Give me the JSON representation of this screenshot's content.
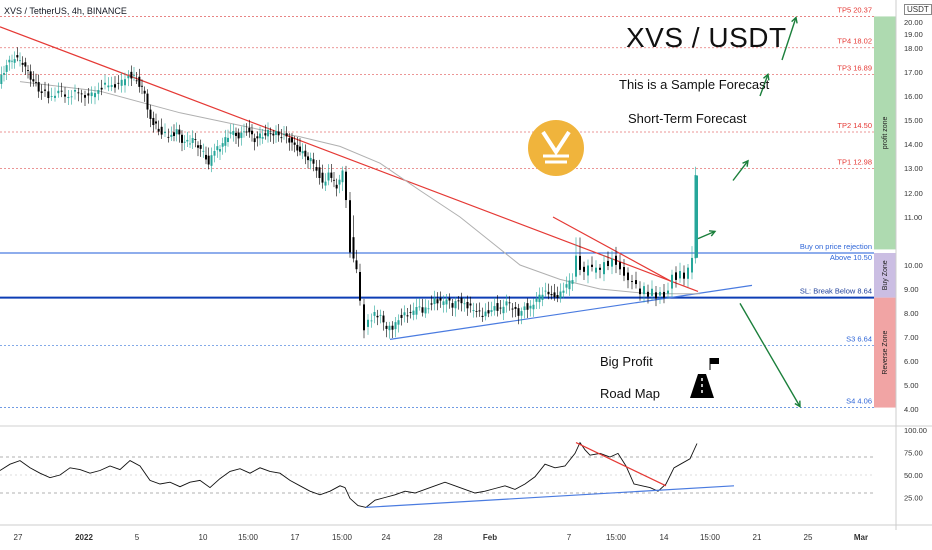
{
  "header": {
    "symbol_line": "XVS / TetherUS, 4h, BINANCE",
    "currency": "USDT"
  },
  "annotations": {
    "title": "XVS / USDT",
    "sample": "This is a Sample Forecast",
    "short_term": "Short-Term Forecast",
    "big_profit": "Big Profit",
    "road_map": "Road Map"
  },
  "colors": {
    "up_candle": "#26a69a",
    "down_candle": "#000000",
    "trend_red": "#e53935",
    "trend_blue": "#2962ff",
    "profit_zone": "#a5d6a7",
    "buy_zone": "#c5b7e0",
    "reverse_zone": "#ef9a9a",
    "forecast_arrow": "#1b7f3b",
    "logo": "#f0b43c"
  },
  "chart_data": [
    {
      "type": "candlestick",
      "y_axis_ticks": [
        "20.00",
        "19.00",
        "18.00",
        "17.00",
        "16.00",
        "15.00",
        "14.00",
        "13.00",
        "12.00",
        "11.00",
        "10.00",
        "9.00",
        "8.00",
        "7.00",
        "6.00",
        "5.00",
        "4.00"
      ],
      "x_axis_ticks": [
        "27",
        "2022",
        "5",
        "10",
        "15:00",
        "17",
        "15:00",
        "24",
        "28",
        "Feb",
        "7",
        "15:00",
        "14",
        "15:00",
        "21",
        "25",
        "Mar"
      ],
      "ylim": [
        3.8,
        20.4
      ],
      "close_path": [
        [
          0,
          16.5
        ],
        [
          8,
          17.3
        ],
        [
          16,
          17.6
        ],
        [
          24,
          17.4
        ],
        [
          32,
          16.8
        ],
        [
          40,
          16.3
        ],
        [
          50,
          16.0
        ],
        [
          60,
          16.1
        ],
        [
          70,
          16.0
        ],
        [
          80,
          16.2
        ],
        [
          90,
          15.9
        ],
        [
          100,
          16.3
        ],
        [
          110,
          16.5
        ],
        [
          120,
          16.4
        ],
        [
          130,
          16.9
        ],
        [
          138,
          16.7
        ],
        [
          146,
          16.1
        ],
        [
          152,
          15.0
        ],
        [
          160,
          14.6
        ],
        [
          170,
          14.3
        ],
        [
          178,
          14.5
        ],
        [
          186,
          14.0
        ],
        [
          194,
          14.2
        ],
        [
          202,
          13.8
        ],
        [
          210,
          13.2
        ],
        [
          216,
          13.7
        ],
        [
          224,
          14.0
        ],
        [
          232,
          14.5
        ],
        [
          240,
          14.3
        ],
        [
          248,
          14.6
        ],
        [
          256,
          14.2
        ],
        [
          264,
          14.4
        ],
        [
          272,
          14.5
        ],
        [
          280,
          14.4
        ],
        [
          288,
          14.3
        ],
        [
          296,
          13.9
        ],
        [
          304,
          13.6
        ],
        [
          312,
          13.3
        ],
        [
          318,
          13.0
        ],
        [
          324,
          12.4
        ],
        [
          330,
          12.7
        ],
        [
          338,
          12.3
        ],
        [
          344,
          12.8
        ],
        [
          348,
          11.6
        ],
        [
          352,
          10.6
        ],
        [
          358,
          9.8
        ],
        [
          362,
          8.4
        ],
        [
          366,
          7.4
        ],
        [
          370,
          7.6
        ],
        [
          376,
          8.0
        ],
        [
          382,
          7.8
        ],
        [
          388,
          7.3
        ],
        [
          394,
          7.4
        ],
        [
          400,
          7.8
        ],
        [
          406,
          8.0
        ],
        [
          412,
          7.9
        ],
        [
          418,
          8.2
        ],
        [
          424,
          8.1
        ],
        [
          430,
          8.3
        ],
        [
          436,
          8.6
        ],
        [
          442,
          8.4
        ],
        [
          448,
          8.5
        ],
        [
          454,
          8.3
        ],
        [
          460,
          8.6
        ],
        [
          466,
          8.4
        ],
        [
          472,
          8.2
        ],
        [
          478,
          8.0
        ],
        [
          484,
          7.9
        ],
        [
          490,
          8.1
        ],
        [
          496,
          8.3
        ],
        [
          502,
          8.1
        ],
        [
          508,
          8.4
        ],
        [
          514,
          8.2
        ],
        [
          520,
          8.0
        ],
        [
          526,
          8.3
        ],
        [
          532,
          8.2
        ],
        [
          538,
          8.5
        ],
        [
          544,
          8.8
        ],
        [
          550,
          8.9
        ],
        [
          556,
          8.7
        ],
        [
          562,
          8.8
        ],
        [
          568,
          9.1
        ],
        [
          574,
          9.4
        ],
        [
          578,
          10.3
        ],
        [
          582,
          9.9
        ],
        [
          586,
          9.6
        ],
        [
          590,
          10.1
        ],
        [
          594,
          9.8
        ],
        [
          598,
          10.0
        ],
        [
          602,
          9.7
        ],
        [
          606,
          10.2
        ],
        [
          610,
          9.9
        ],
        [
          614,
          10.3
        ],
        [
          618,
          10.0
        ],
        [
          622,
          9.8
        ],
        [
          626,
          9.6
        ],
        [
          630,
          9.3
        ],
        [
          634,
          9.4
        ],
        [
          638,
          9.1
        ],
        [
          642,
          8.9
        ],
        [
          646,
          9.0
        ],
        [
          650,
          8.8
        ],
        [
          654,
          8.9
        ],
        [
          658,
          8.7
        ],
        [
          662,
          8.8
        ],
        [
          666,
          8.7
        ],
        [
          670,
          8.9
        ],
        [
          674,
          9.6
        ],
        [
          678,
          9.4
        ],
        [
          682,
          9.7
        ],
        [
          686,
          9.5
        ],
        [
          690,
          9.8
        ],
        [
          694,
          10.4
        ],
        [
          697,
          12.6
        ]
      ],
      "series": [
        {
          "name": "red trendline",
          "x": [
            0,
            698
          ],
          "y": [
            19.6,
            8.9
          ]
        },
        {
          "name": "blue support",
          "x": [
            390,
            752
          ],
          "y": [
            6.9,
            9.15
          ]
        },
        {
          "name": "moving average",
          "x": [
            20,
            100,
            180,
            260,
            300,
            340,
            380,
            420,
            460,
            520,
            560,
            600,
            650,
            700
          ],
          "y": [
            16.6,
            16.2,
            15.3,
            14.6,
            14.3,
            13.9,
            13.2,
            12.1,
            11.0,
            10.0,
            9.4,
            9.0,
            8.8,
            8.8
          ]
        }
      ],
      "levels": [
        {
          "label": "TP5 20.37",
          "value": 20.37,
          "kind": "tp"
        },
        {
          "label": "TP4 18.02",
          "value": 18.02,
          "kind": "tp"
        },
        {
          "label": "TP3 16.89",
          "value": 16.89,
          "kind": "tp"
        },
        {
          "label": "TP2 14.50",
          "value": 14.5,
          "kind": "tp"
        },
        {
          "label": "TP1 12.98",
          "value": 12.98,
          "kind": "tp"
        },
        {
          "label": "Buy on price rejection",
          "value": 10.5,
          "kind": "entry"
        },
        {
          "label": "Above 10.50",
          "value": 10.5,
          "kind": "entry_sub"
        },
        {
          "label": "SL: Break Below 8.64",
          "value": 8.64,
          "kind": "sl"
        },
        {
          "label": "S3 6.64",
          "value": 6.64,
          "kind": "support"
        },
        {
          "label": "S4 4.06",
          "value": 4.06,
          "kind": "support"
        }
      ],
      "zones": [
        {
          "label": "profit zone",
          "from": 10.55,
          "to": 20.37
        },
        {
          "label": "Buy Zone",
          "from": 8.64,
          "to": 10.5
        },
        {
          "label": "Reverse Zone",
          "from": 4.06,
          "to": 8.64
        }
      ],
      "forecast_up": [
        [
          698,
          10.7
        ],
        [
          715,
          10.8
        ],
        [
          733,
          12.5
        ],
        [
          748,
          13.3
        ],
        [
          760,
          16.0
        ],
        [
          768,
          16.9
        ],
        [
          782,
          17.5
        ],
        [
          796,
          20.3
        ]
      ],
      "forecast_down": [
        [
          740,
          8.4
        ],
        [
          800,
          4.1
        ]
      ]
    },
    {
      "type": "line",
      "y_axis_ticks": [
        "100.00",
        "75.00",
        "50.00",
        "25.00"
      ],
      "ylim": [
        0,
        100
      ],
      "reference_levels": [
        70,
        30
      ],
      "values_path": [
        [
          0,
          55
        ],
        [
          10,
          62
        ],
        [
          20,
          66
        ],
        [
          30,
          58
        ],
        [
          40,
          52
        ],
        [
          50,
          47
        ],
        [
          60,
          50
        ],
        [
          70,
          58
        ],
        [
          80,
          56
        ],
        [
          90,
          52
        ],
        [
          100,
          55
        ],
        [
          110,
          60
        ],
        [
          120,
          56
        ],
        [
          130,
          66
        ],
        [
          140,
          60
        ],
        [
          150,
          44
        ],
        [
          160,
          40
        ],
        [
          170,
          42
        ],
        [
          180,
          37
        ],
        [
          190,
          42
        ],
        [
          200,
          44
        ],
        [
          210,
          36
        ],
        [
          220,
          46
        ],
        [
          230,
          54
        ],
        [
          240,
          57
        ],
        [
          250,
          52
        ],
        [
          260,
          58
        ],
        [
          270,
          54
        ],
        [
          280,
          52
        ],
        [
          290,
          44
        ],
        [
          300,
          38
        ],
        [
          310,
          32
        ],
        [
          320,
          28
        ],
        [
          330,
          32
        ],
        [
          340,
          38
        ],
        [
          345,
          36
        ],
        [
          350,
          24
        ],
        [
          358,
          16
        ],
        [
          366,
          14
        ],
        [
          375,
          22
        ],
        [
          385,
          25
        ],
        [
          395,
          28
        ],
        [
          405,
          32
        ],
        [
          415,
          30
        ],
        [
          425,
          34
        ],
        [
          435,
          38
        ],
        [
          445,
          42
        ],
        [
          455,
          38
        ],
        [
          465,
          34
        ],
        [
          475,
          30
        ],
        [
          485,
          32
        ],
        [
          495,
          35
        ],
        [
          505,
          38
        ],
        [
          515,
          34
        ],
        [
          525,
          40
        ],
        [
          535,
          48
        ],
        [
          545,
          62
        ],
        [
          555,
          58
        ],
        [
          565,
          60
        ],
        [
          575,
          74
        ],
        [
          580,
          86
        ],
        [
          585,
          78
        ],
        [
          590,
          72
        ],
        [
          600,
          74
        ],
        [
          610,
          70
        ],
        [
          618,
          74
        ],
        [
          626,
          60
        ],
        [
          634,
          40
        ],
        [
          642,
          38
        ],
        [
          650,
          36
        ],
        [
          658,
          32
        ],
        [
          666,
          40
        ],
        [
          674,
          58
        ],
        [
          682,
          63
        ],
        [
          690,
          68
        ],
        [
          697,
          85
        ]
      ],
      "series": [
        {
          "name": "red trendline",
          "x": [
            576,
            666
          ],
          "y": [
            86,
            38
          ]
        },
        {
          "name": "blue trendline",
          "x": [
            366,
            734
          ],
          "y": [
            14,
            38
          ]
        }
      ]
    }
  ]
}
